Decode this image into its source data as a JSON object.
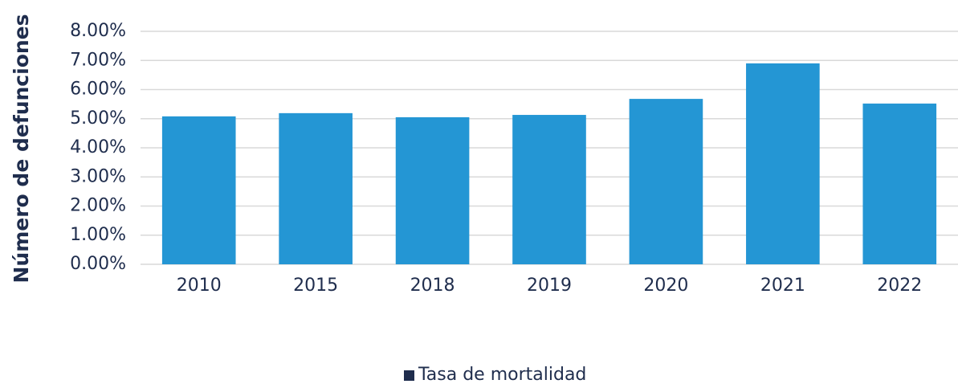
{
  "chart_data": {
    "type": "bar",
    "y_label": "Número de defunciones",
    "categories": [
      "2010",
      "2015",
      "2018",
      "2019",
      "2020",
      "2021",
      "2022"
    ],
    "series": [
      {
        "name": "Tasa de mortalidad",
        "color": "#2496d4",
        "values": [
          5.08,
          5.19,
          5.05,
          5.13,
          5.68,
          6.9,
          5.52
        ]
      }
    ],
    "ylim": [
      0,
      8
    ],
    "yticks": [
      {
        "value": 0,
        "label": "0.00%"
      },
      {
        "value": 1,
        "label": "1.00%"
      },
      {
        "value": 2,
        "label": "2.00%"
      },
      {
        "value": 3,
        "label": "3.00%"
      },
      {
        "value": 4,
        "label": "4.00%"
      },
      {
        "value": 5,
        "label": "5.00%"
      },
      {
        "value": 6,
        "label": "6.00%"
      },
      {
        "value": 7,
        "label": "7.00%"
      },
      {
        "value": 8,
        "label": "8.00%"
      }
    ],
    "grid": true,
    "legend": "bottom"
  }
}
